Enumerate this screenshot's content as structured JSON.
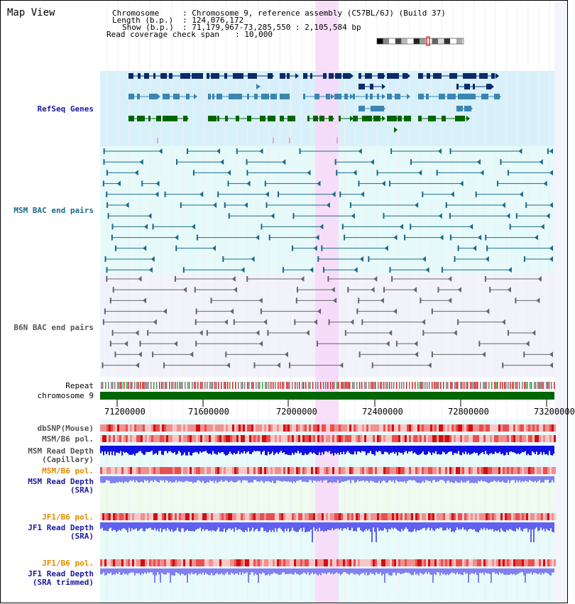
{
  "title": "Map View",
  "info": {
    "chromosome_label": "Chromosome",
    "chromosome_value": ": Chromosome 9, reference assembly (C57BL/6J) (Build 37)",
    "length_label": "Length (b.p.)",
    "length_value": ": 124,076,172",
    "show_label": "Show (b.p.)",
    "show_value": ": 71,179,967-73,285,550 : 2,105,584 bp",
    "coverage_label": "Read coverage check span",
    "coverage_value": ": 10,000"
  },
  "tracks": {
    "refseq": "RefSeq Genes",
    "msm_bac": "MSM BAC end pairs",
    "b6n_bac": "B6N BAC end pairs",
    "repeat": "Repeat",
    "chromosome": "chromosome 9",
    "dbsnp": "dbSNP(Mouse)",
    "msm_b6_pol": "MSM/B6 pol.",
    "msm_depth_cap_1": "MSM Read Depth",
    "msm_depth_cap_2": "(Capillary)",
    "msm_b6_pol_sra": "MSM/B6 pol.",
    "msm_depth_sra_1": "MSM Read Depth",
    "msm_depth_sra_2": "(SRA)",
    "jf1_b6_pol": "JF1/B6 pol.",
    "jf1_depth_1": "JF1 Read Depth",
    "jf1_depth_2": "(SRA)",
    "jf1_b6_pol_2": "JF1/B6 pol.",
    "jf1_depth_trim_1": "JF1 Read Depth",
    "jf1_depth_trim_2": "(SRA trimmed)"
  },
  "axis": {
    "ticks": [
      "71200000",
      "71600000",
      "72000000",
      "72400000",
      "72800000",
      "73200000"
    ]
  },
  "colors": {
    "track_blue": "#1a1aa0",
    "track_teal": "#1a6a8a",
    "track_gray": "#555555",
    "track_orange": "#e08a00",
    "highlight": "#f8d8f8",
    "refseq_bg": "#d8f0fa",
    "chromosome_bar": "#006600"
  }
}
